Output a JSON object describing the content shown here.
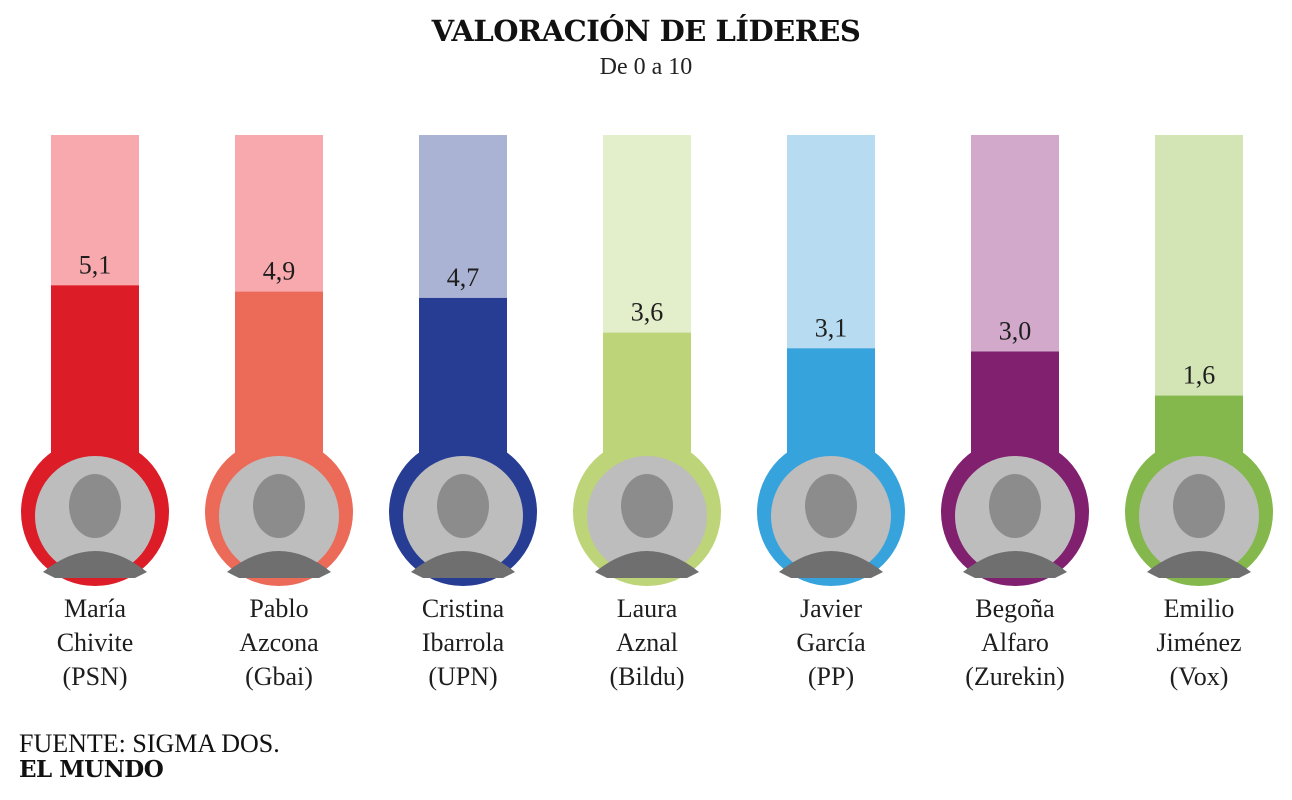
{
  "title": "VALORACIÓN DE LÍDERES",
  "subtitle": "De 0 a 10",
  "source": "FUENTE: SIGMA DOS.",
  "brand": "EL MUNDO",
  "chart_data": {
    "type": "bar",
    "title": "VALORACIÓN DE LÍDERES",
    "subtitle": "De 0 a 10",
    "ylim": [
      0,
      10
    ],
    "grid": false,
    "categories": [
      "María Chivite (PSN)",
      "Pablo Azcona (Gbai)",
      "Cristina Ibarrola (UPN)",
      "Laura Aznal (Bildu)",
      "Javier García (PP)",
      "Begoña Alfaro (Zurekin)",
      "Emilio Jiménez (Vox)"
    ],
    "values": [
      5.1,
      4.9,
      4.7,
      3.6,
      3.1,
      3.0,
      1.6
    ],
    "leaders": [
      {
        "first": "María",
        "last": "Chivite",
        "party": "(PSN)",
        "value": 5.1,
        "label": "5,1",
        "color": "#dc1c26",
        "light": "#f8a9ad"
      },
      {
        "first": "Pablo",
        "last": "Azcona",
        "party": "(Gbai)",
        "value": 4.9,
        "label": "4,9",
        "color": "#ec6a58",
        "light": "#f8a9ad"
      },
      {
        "first": "Cristina",
        "last": "Ibarrola",
        "party": "(UPN)",
        "value": 4.7,
        "label": "4,7",
        "color": "#263d93",
        "light": "#aab3d3"
      },
      {
        "first": "Laura",
        "last": "Aznal",
        "party": "(Bildu)",
        "value": 3.6,
        "label": "3,6",
        "color": "#bed478",
        "light": "#e3eecb"
      },
      {
        "first": "Javier",
        "last": "García",
        "party": "(PP)",
        "value": 3.1,
        "label": "3,1",
        "color": "#37a3dc",
        "light": "#b7dcf2"
      },
      {
        "first": "Begoña",
        "last": "Alfaro",
        "party": "(Zurekin)",
        "value": 3.0,
        "label": "3,0",
        "color": "#80206f",
        "light": "#d2a9cb"
      },
      {
        "first": "Emilio",
        "last": "Jiménez",
        "party": "(Vox)",
        "value": 1.6,
        "label": "1,6",
        "color": "#84b74c",
        "light": "#d3e5b5"
      }
    ]
  }
}
